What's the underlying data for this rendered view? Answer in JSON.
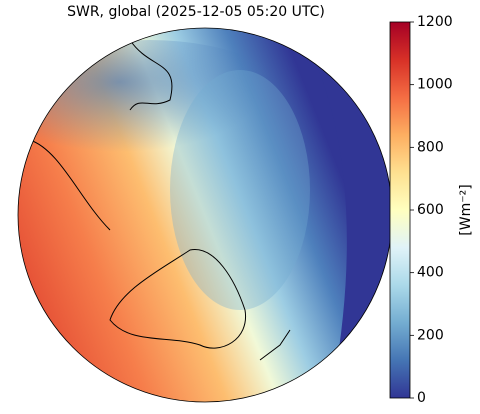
{
  "title": "SWR, global (2025-12-05 05:20 UTC)",
  "colorbar": {
    "label": "[Wm⁻²]",
    "lim": [
      0,
      1200
    ],
    "ticks": [
      0,
      200,
      400,
      600,
      800,
      1000,
      1200
    ],
    "colormap": [
      "#313695",
      "#4575b4",
      "#74add1",
      "#abd9e9",
      "#e0f3f8",
      "#ffffbf",
      "#fee090",
      "#fdae61",
      "#f46d43",
      "#d73027",
      "#a50026"
    ]
  }
}
